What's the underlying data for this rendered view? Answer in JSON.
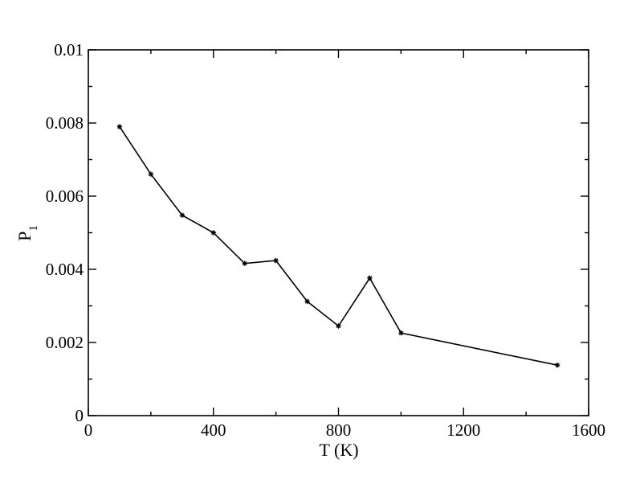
{
  "chart_data": {
    "type": "line",
    "title": "",
    "xlabel": "T (K)",
    "ylabel": {
      "main": "P",
      "subscript": "1"
    },
    "xlim": [
      0,
      1600
    ],
    "ylim": [
      0,
      0.01
    ],
    "x_ticks": [
      0,
      400,
      800,
      1200,
      1600
    ],
    "x_tick_labels": [
      "0",
      "400",
      "800",
      "1200",
      "1600"
    ],
    "y_ticks": [
      0,
      0.002,
      0.004,
      0.006,
      0.008,
      0.01
    ],
    "y_tick_labels": [
      "0",
      "0.002",
      "0.004",
      "0.006",
      "0.008",
      "0.01"
    ],
    "grid": false,
    "line_color": "#000000",
    "marker": "star",
    "series": [
      {
        "x": [
          100,
          200,
          300,
          400,
          500,
          600,
          700,
          800,
          900,
          1000,
          1500
        ],
        "y": [
          0.0079,
          0.0066,
          0.00548,
          0.005,
          0.00416,
          0.00424,
          0.00312,
          0.00245,
          0.00376,
          0.00226,
          0.00138
        ]
      }
    ]
  }
}
